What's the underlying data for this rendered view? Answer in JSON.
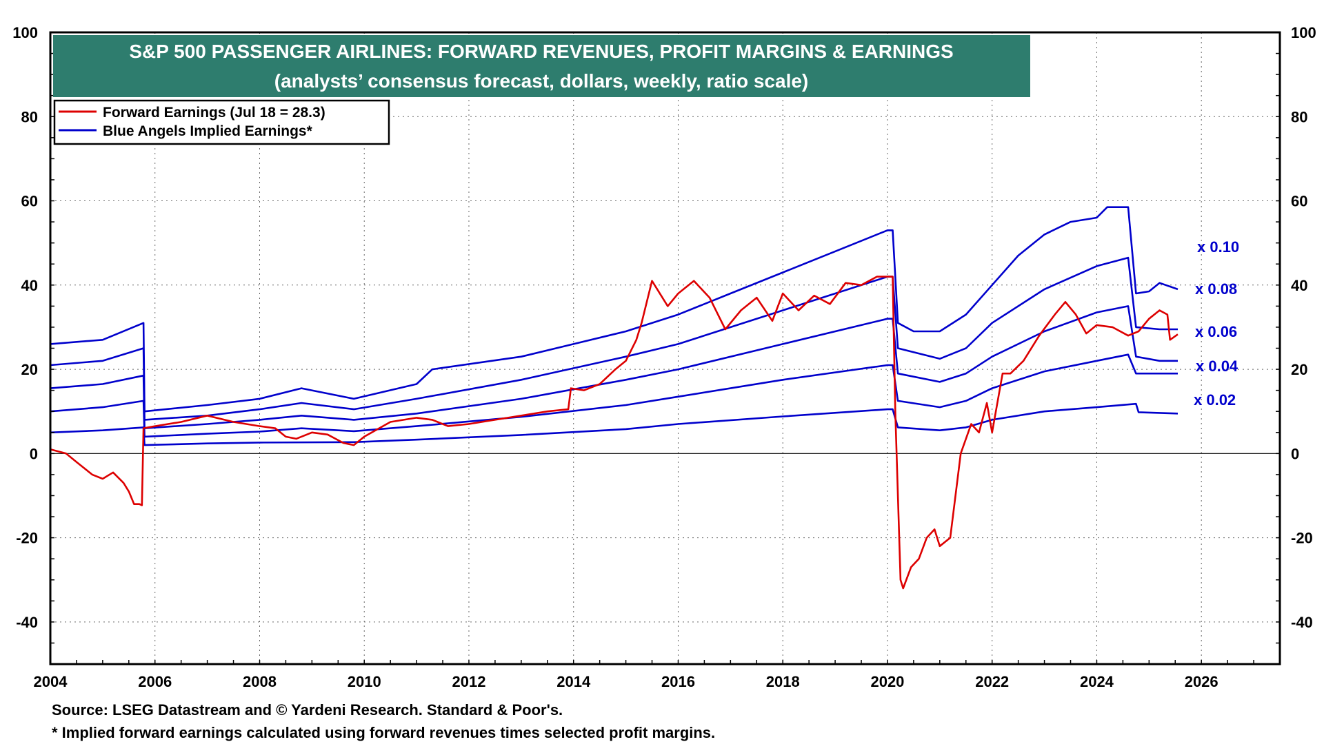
{
  "chart_data": {
    "type": "line",
    "title": "S&P 500 PASSENGER AIRLINES: FORWARD REVENUES, PROFIT MARGINS & EARNINGS",
    "subtitle": "(analysts’ consensus forecast, dollars, weekly, ratio scale)",
    "xlabel": "",
    "ylabel": "",
    "xlim": [
      2004,
      2027.5
    ],
    "ylim": [
      -50,
      100
    ],
    "x_ticks": [
      "2004",
      "2006",
      "2008",
      "2010",
      "2012",
      "2014",
      "2016",
      "2018",
      "2020",
      "2022",
      "2024",
      "2026"
    ],
    "y_ticks": [
      "100",
      "80",
      "60",
      "40",
      "20",
      "0",
      "-20",
      "-40"
    ],
    "grid": true,
    "legend": {
      "placement": "top-left",
      "entries": [
        {
          "label": "Forward Earnings (Jul 18 = 28.3)",
          "color": "#dd0000"
        },
        {
          "label": "Blue Angels Implied Earnings*",
          "color": "#0000cc"
        }
      ]
    },
    "colors": {
      "title_bg": "#2e7d6e",
      "forward": "#dd0000",
      "implied": "#0000cc"
    },
    "series": [
      {
        "name": "Forward Earnings (Jul 18 = 28.3)",
        "color": "#dd0000",
        "x": [
          2004.0,
          2004.3,
          2004.5,
          2004.8,
          2005.0,
          2005.2,
          2005.4,
          2005.5,
          2005.6,
          2005.7,
          2005.75,
          2005.78,
          2006.0,
          2006.5,
          2007.0,
          2007.5,
          2008.0,
          2008.3,
          2008.5,
          2008.7,
          2009.0,
          2009.3,
          2009.6,
          2009.8,
          2010.0,
          2010.5,
          2011.0,
          2011.3,
          2011.6,
          2012.0,
          2012.5,
          2013.0,
          2013.5,
          2013.9,
          2013.95,
          2014.2,
          2014.5,
          2014.8,
          2015.0,
          2015.2,
          2015.3,
          2015.5,
          2015.8,
          2016.0,
          2016.3,
          2016.6,
          2016.9,
          2017.2,
          2017.5,
          2017.8,
          2018.0,
          2018.3,
          2018.6,
          2018.9,
          2019.2,
          2019.5,
          2019.8,
          2020.0,
          2020.1,
          2020.15,
          2020.25,
          2020.3,
          2020.45,
          2020.6,
          2020.75,
          2020.9,
          2021.0,
          2021.2,
          2021.4,
          2021.6,
          2021.75,
          2021.9,
          2022.0,
          2022.2,
          2022.35,
          2022.6,
          2022.9,
          2023.2,
          2023.4,
          2023.6,
          2023.8,
          2024.0,
          2024.3,
          2024.6,
          2024.8,
          2025.0,
          2025.2,
          2025.35,
          2025.4,
          2025.55
        ],
        "y": [
          1.0,
          0.0,
          -2.0,
          -5.0,
          -6.0,
          -4.5,
          -7.0,
          -9.0,
          -12.0,
          -12.0,
          -12.3,
          6.0,
          6.5,
          7.5,
          9.0,
          7.5,
          6.5,
          6.0,
          4.0,
          3.5,
          5.0,
          4.5,
          2.5,
          2.0,
          4.0,
          7.5,
          8.5,
          8.0,
          6.5,
          7.0,
          8.0,
          9.0,
          10.0,
          10.5,
          15.5,
          15.0,
          16.5,
          20.0,
          22.0,
          27.0,
          31.0,
          41.0,
          35.0,
          38.0,
          41.0,
          37.0,
          29.5,
          34.0,
          37.0,
          31.5,
          38.0,
          34.0,
          37.5,
          35.5,
          40.5,
          40.0,
          42.0,
          42.0,
          42.0,
          10.0,
          -30.0,
          -32.0,
          -27.0,
          -25.0,
          -20.0,
          -18.0,
          -22.0,
          -20.0,
          0.0,
          7.0,
          5.0,
          12.0,
          5.0,
          19.0,
          19.0,
          22.0,
          28.0,
          33.0,
          36.0,
          33.0,
          28.5,
          30.5,
          30.0,
          28.0,
          29.0,
          32.0,
          34.0,
          33.0,
          27.0,
          28.3
        ]
      },
      {
        "name": "x 0.10",
        "color": "#0000cc",
        "x": [
          2004.0,
          2005.0,
          2005.78,
          2005.8,
          2007.0,
          2008.0,
          2008.8,
          2009.8,
          2011.0,
          2011.3,
          2013.0,
          2014.0,
          2015.0,
          2016.0,
          2017.0,
          2018.0,
          2019.0,
          2020.0,
          2020.1,
          2020.2,
          2020.5,
          2021.0,
          2021.5,
          2022.0,
          2022.5,
          2023.0,
          2023.5,
          2024.0,
          2024.2,
          2024.6,
          2024.75,
          2025.0,
          2025.2,
          2025.55
        ],
        "y": [
          26.0,
          27.0,
          31.0,
          10.0,
          11.5,
          13.0,
          15.5,
          13.0,
          16.5,
          20.0,
          23.0,
          26.0,
          29.0,
          33.0,
          38.0,
          43.0,
          48.0,
          53.0,
          53.0,
          31.0,
          29.0,
          29.0,
          33.0,
          40.0,
          47.0,
          52.0,
          55.0,
          56.0,
          58.5,
          58.5,
          38.0,
          38.5,
          40.5,
          39.0
        ]
      },
      {
        "name": "x 0.08",
        "color": "#0000cc",
        "x": [
          2004.0,
          2005.0,
          2005.78,
          2005.8,
          2007.0,
          2008.0,
          2008.8,
          2009.8,
          2011.0,
          2013.0,
          2015.0,
          2016.0,
          2018.0,
          2020.0,
          2020.1,
          2020.2,
          2021.0,
          2021.5,
          2022.0,
          2023.0,
          2024.0,
          2024.6,
          2024.75,
          2025.2,
          2025.55
        ],
        "y": [
          21.0,
          22.0,
          25.0,
          8.0,
          9.0,
          10.5,
          12.0,
          10.5,
          13.0,
          17.5,
          23.0,
          26.0,
          34.0,
          42.0,
          42.0,
          25.0,
          22.5,
          25.0,
          31.0,
          39.0,
          44.5,
          46.5,
          30.0,
          29.5,
          29.5
        ]
      },
      {
        "name": "x 0.06",
        "color": "#0000cc",
        "x": [
          2004.0,
          2005.0,
          2005.78,
          2005.8,
          2007.0,
          2008.0,
          2008.8,
          2009.8,
          2011.0,
          2013.0,
          2015.0,
          2016.0,
          2018.0,
          2020.0,
          2020.1,
          2020.2,
          2021.0,
          2021.5,
          2022.0,
          2023.0,
          2024.0,
          2024.6,
          2024.75,
          2025.2,
          2025.55
        ],
        "y": [
          15.5,
          16.5,
          18.5,
          6.0,
          7.0,
          8.0,
          9.0,
          8.0,
          9.5,
          13.0,
          17.5,
          20.0,
          26.0,
          32.0,
          32.0,
          19.0,
          17.0,
          19.0,
          23.0,
          29.0,
          33.5,
          35.0,
          23.0,
          22.0,
          22.0
        ]
      },
      {
        "name": "x 0.04",
        "color": "#0000cc",
        "x": [
          2004.0,
          2005.0,
          2005.78,
          2005.8,
          2007.0,
          2008.0,
          2008.8,
          2009.8,
          2011.0,
          2013.0,
          2015.0,
          2016.0,
          2018.0,
          2020.0,
          2020.1,
          2020.2,
          2021.0,
          2021.5,
          2022.0,
          2023.0,
          2024.0,
          2024.6,
          2024.75,
          2025.2,
          2025.55
        ],
        "y": [
          10.0,
          11.0,
          12.5,
          4.0,
          4.7,
          5.2,
          6.0,
          5.3,
          6.5,
          8.7,
          11.5,
          13.5,
          17.5,
          21.0,
          21.0,
          12.5,
          11.0,
          12.5,
          15.5,
          19.5,
          22.0,
          23.5,
          19.0,
          19.0,
          19.0
        ]
      },
      {
        "name": "x 0.02",
        "color": "#0000cc",
        "x": [
          2004.0,
          2005.0,
          2005.78,
          2005.8,
          2007.0,
          2008.0,
          2009.8,
          2011.0,
          2013.0,
          2015.0,
          2016.0,
          2018.0,
          2020.0,
          2020.1,
          2020.2,
          2021.0,
          2021.5,
          2022.0,
          2023.0,
          2024.0,
          2024.75,
          2024.8,
          2025.55
        ],
        "y": [
          5.0,
          5.5,
          6.2,
          2.0,
          2.4,
          2.6,
          2.7,
          3.3,
          4.4,
          5.8,
          7.0,
          8.8,
          10.5,
          10.5,
          6.2,
          5.5,
          6.2,
          8.0,
          10.0,
          11.0,
          11.8,
          9.8,
          9.5
        ]
      }
    ]
  },
  "margin_labels": [
    "x 0.10",
    "x 0.08",
    "x 0.06",
    "x 0.04",
    "x 0.02"
  ],
  "footnotes": {
    "source": "Source: LSEG Datastream and © Yardeni Research. Standard & Poor's.",
    "note": "* Implied forward earnings calculated using forward revenues times selected profit margins."
  }
}
